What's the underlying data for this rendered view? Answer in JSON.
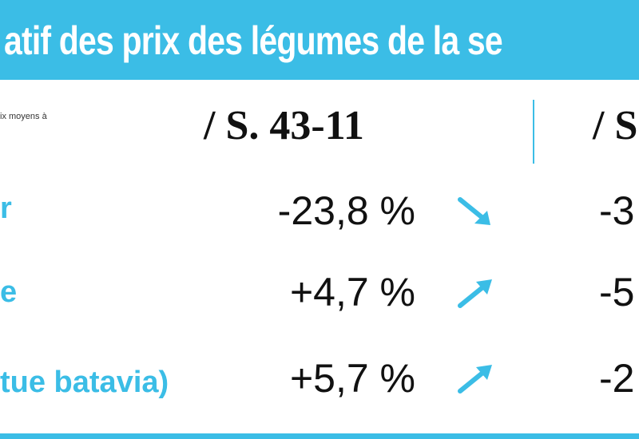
{
  "header": {
    "title": "atif des prix des légumes de la se",
    "note": "ix moyens à",
    "columns": [
      "/ S. 43-11",
      "/ S"
    ]
  },
  "rows": [
    {
      "label": "r",
      "values": [
        "-23,8 %",
        "-3"
      ]
    },
    {
      "label": "e",
      "values": [
        "+4,7 %",
        "-5"
      ]
    },
    {
      "label": "tue batavia)",
      "values": [
        "+5,7 %",
        "-2"
      ]
    }
  ]
}
